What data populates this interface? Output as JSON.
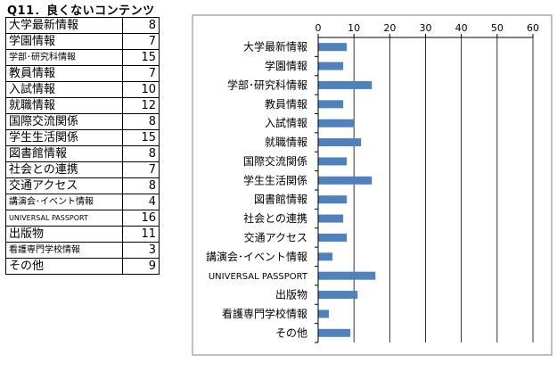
{
  "title": "Q11．良くないコンテンツ",
  "table": {
    "rows": [
      {
        "label": "大学最新情報",
        "value": "8"
      },
      {
        "label": "学園情報",
        "value": "7"
      },
      {
        "label": "学部･研究科情報",
        "value": "15"
      },
      {
        "label": "教員情報",
        "value": "7"
      },
      {
        "label": "入試情報",
        "value": "10"
      },
      {
        "label": "就職情報",
        "value": "12"
      },
      {
        "label": "国際交流関係",
        "value": "8"
      },
      {
        "label": "学生生活関係",
        "value": "15"
      },
      {
        "label": "図書館情報",
        "value": "8"
      },
      {
        "label": "社会との連携",
        "value": "7"
      },
      {
        "label": "交通アクセス",
        "value": "8"
      },
      {
        "label": "講演会･イベント情報",
        "value": "4"
      },
      {
        "label": "UNIVERSAL PASSPORT",
        "value": "16"
      },
      {
        "label": "出版物",
        "value": "11"
      },
      {
        "label": "看護専門学校情報",
        "value": "3"
      },
      {
        "label": "その他",
        "value": "9"
      }
    ]
  },
  "chart_data": {
    "type": "bar",
    "orientation": "horizontal",
    "title": "",
    "xlabel": "",
    "ylabel": "",
    "categories": [
      "大学最新情報",
      "学園情報",
      "学部･研究科情報",
      "教員情報",
      "入試情報",
      "就職情報",
      "国際交流関係",
      "学生生活関係",
      "図書館情報",
      "社会との連携",
      "交通アクセス",
      "講演会･イベント情報",
      "UNIVERSAL PASSPORT",
      "出版物",
      "看護専門学校情報",
      "その他"
    ],
    "values": [
      8,
      7,
      15,
      7,
      10,
      12,
      8,
      15,
      8,
      7,
      8,
      4,
      16,
      11,
      3,
      9
    ],
    "xlim": [
      0,
      60
    ],
    "ticks": [
      "0",
      "10",
      "20",
      "30",
      "40",
      "50",
      "60"
    ],
    "axis_position": "top",
    "grid": true,
    "bar_color": "#4f81bd",
    "grid_color": "#000000",
    "frame_color": "#808080"
  }
}
